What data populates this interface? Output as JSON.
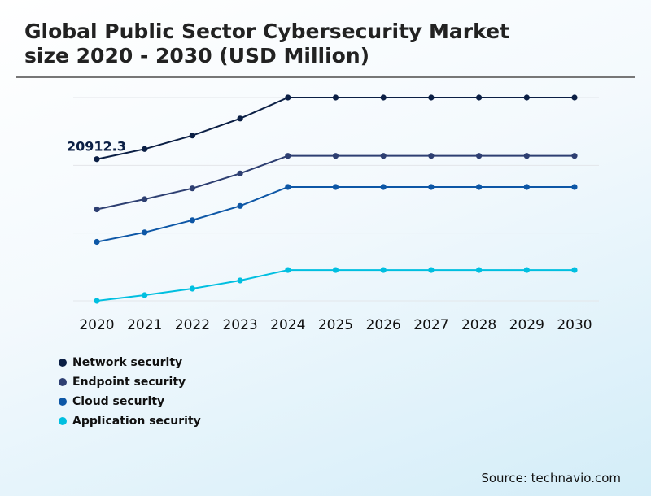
{
  "chart_data": {
    "type": "line",
    "title": "Global Public Sector Cybersecurity Market size 2020 - 2030 (USD Million)",
    "xlabel": "",
    "ylabel": "",
    "categories": [
      "2020",
      "2021",
      "2022",
      "2023",
      "2024",
      "2025",
      "2026",
      "2027",
      "2028",
      "2029",
      "2030"
    ],
    "ylim": [
      0,
      30000
    ],
    "grid": true,
    "legend_position": "bottom-left",
    "series": [
      {
        "name": "Network security",
        "color": "#0b1f45",
        "values": [
          20912.3,
          22400,
          24400,
          26900,
          30000,
          30000,
          30000,
          30000,
          30000,
          30000,
          30000
        ]
      },
      {
        "name": "Endpoint security",
        "color": "#2e3f72",
        "values": [
          13500,
          15000,
          16600,
          18800,
          21400,
          21400,
          21400,
          21400,
          21400,
          21400,
          21400
        ]
      },
      {
        "name": "Cloud security",
        "color": "#0d57a6",
        "values": [
          8700,
          10100,
          11900,
          14000,
          16800,
          16800,
          16800,
          16800,
          16800,
          16800,
          16800
        ]
      },
      {
        "name": "Application security",
        "color": "#00bfe0",
        "values": [
          0,
          840,
          1800,
          3000,
          4550,
          4550,
          4550,
          4550,
          4550,
          4550,
          4550
        ]
      }
    ],
    "annotations": [
      {
        "text": "20912.3",
        "series": "Network security",
        "category": "2020"
      }
    ]
  },
  "source": "Source: technavio.com"
}
